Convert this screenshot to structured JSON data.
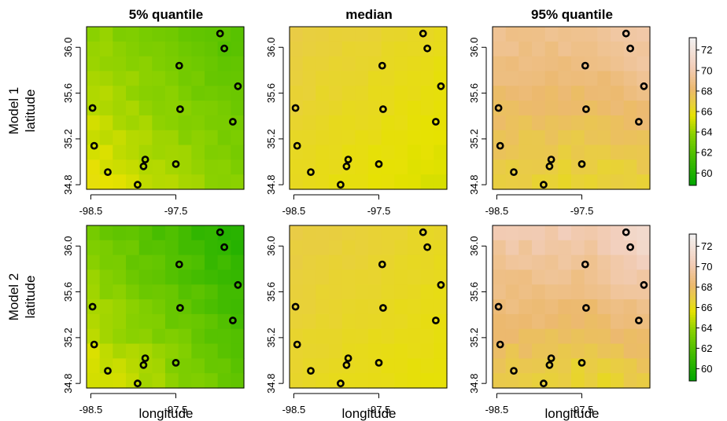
{
  "chart_data": {
    "type": "heatmap",
    "columns": [
      "5% quantile",
      "median",
      "95% quantile"
    ],
    "rows": [
      "Model 1",
      "Model 2"
    ],
    "xlabel": "longitude",
    "ylabel": "latitude",
    "x_ticks": [
      "-98.5",
      "-97.5"
    ],
    "x_tick_values": [
      -98.5,
      -97.5
    ],
    "y_ticks": [
      "34.8",
      "35.2",
      "35.6",
      "36.0"
    ],
    "y_tick_values": [
      34.8,
      35.2,
      35.6,
      36.0
    ],
    "xlim": [
      -98.55,
      -96.7
    ],
    "ylim": [
      34.76,
      36.18
    ],
    "colorbar": {
      "ticks": [
        "72",
        "70",
        "68",
        "66",
        "64",
        "62",
        "60"
      ],
      "tick_values": [
        72,
        70,
        68,
        66,
        64,
        62,
        60
      ],
      "range": [
        58.8,
        73.2
      ]
    },
    "stations": [
      {
        "lon": -96.98,
        "lat": 36.12
      },
      {
        "lon": -96.93,
        "lat": 35.99
      },
      {
        "lon": -97.46,
        "lat": 35.84
      },
      {
        "lon": -96.77,
        "lat": 35.66
      },
      {
        "lon": -98.48,
        "lat": 35.47
      },
      {
        "lon": -97.45,
        "lat": 35.46
      },
      {
        "lon": -96.83,
        "lat": 35.35
      },
      {
        "lon": -98.46,
        "lat": 35.14
      },
      {
        "lon": -98.3,
        "lat": 34.91
      },
      {
        "lon": -97.86,
        "lat": 35.02
      },
      {
        "lon": -97.88,
        "lat": 34.96
      },
      {
        "lon": -97.5,
        "lat": 34.98
      },
      {
        "lon": -97.95,
        "lat": 34.8
      }
    ],
    "panels": [
      {
        "row": "Model 1",
        "column": "5% quantile",
        "min": 61.8,
        "max": 65.8
      },
      {
        "row": "Model 1",
        "column": "median",
        "min": 65.2,
        "max": 67.0
      },
      {
        "row": "Model 1",
        "column": "95% quantile",
        "min": 66.2,
        "max": 70.8
      },
      {
        "row": "Model 2",
        "column": "5% quantile",
        "min": 60.0,
        "max": 65.8
      },
      {
        "row": "Model 2",
        "column": "median",
        "min": 65.6,
        "max": 67.0
      },
      {
        "row": "Model 2",
        "column": "95% quantile",
        "min": 66.2,
        "max": 72.2
      }
    ]
  }
}
